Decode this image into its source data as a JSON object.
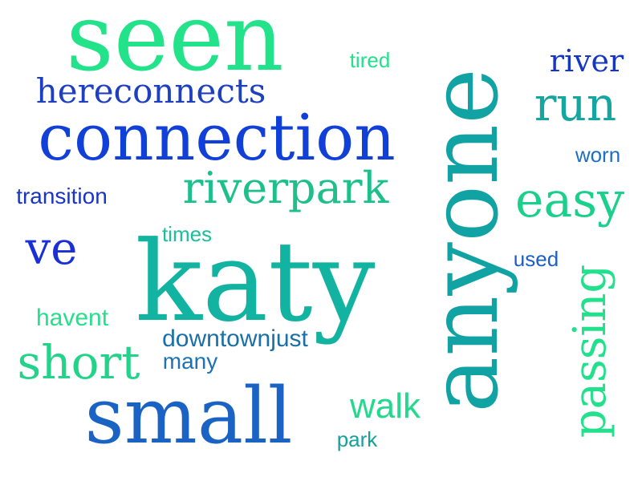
{
  "words": [
    {
      "key": "seen",
      "text": "seen",
      "color": "#22e389"
    },
    {
      "key": "anyone",
      "text": "anyone",
      "color": "#11a3a3"
    },
    {
      "key": "connection",
      "text": "connection",
      "color": "#1140d8"
    },
    {
      "key": "katy",
      "text": "katy",
      "color": "#12b3a0"
    },
    {
      "key": "small",
      "text": "small",
      "color": "#1a63c4"
    },
    {
      "key": "riverpark",
      "text": "riverpark",
      "color": "#1dc08a"
    },
    {
      "key": "hereconnects",
      "text": "hereconnects",
      "color": "#1d3fc0"
    },
    {
      "key": "run",
      "text": "run",
      "color": "#16a6a0"
    },
    {
      "key": "river",
      "text": "river",
      "color": "#1436c6"
    },
    {
      "key": "easy",
      "text": "easy",
      "color": "#1bcf8c"
    },
    {
      "key": "passing",
      "text": "passing",
      "color": "#22e08c"
    },
    {
      "key": "short",
      "text": "short",
      "color": "#22d389"
    },
    {
      "key": "ve",
      "text": "ve",
      "color": "#1a2fd5"
    },
    {
      "key": "tired",
      "text": "tired",
      "color": "#24e08c"
    },
    {
      "key": "worn",
      "text": "worn",
      "color": "#1b6fc4"
    },
    {
      "key": "transition",
      "text": "transition",
      "color": "#1a35c4"
    },
    {
      "key": "times",
      "text": "times",
      "color": "#1bbf9a"
    },
    {
      "key": "used",
      "text": "used",
      "color": "#1c5fc4"
    },
    {
      "key": "havent",
      "text": "havent",
      "color": "#25df8d"
    },
    {
      "key": "downtownjust",
      "text": "downtownjust",
      "color": "#1a6fa8"
    },
    {
      "key": "many",
      "text": "many",
      "color": "#1b72b4"
    },
    {
      "key": "walk",
      "text": "walk",
      "color": "#24d98d"
    },
    {
      "key": "park",
      "text": "park",
      "color": "#16a19a"
    }
  ]
}
